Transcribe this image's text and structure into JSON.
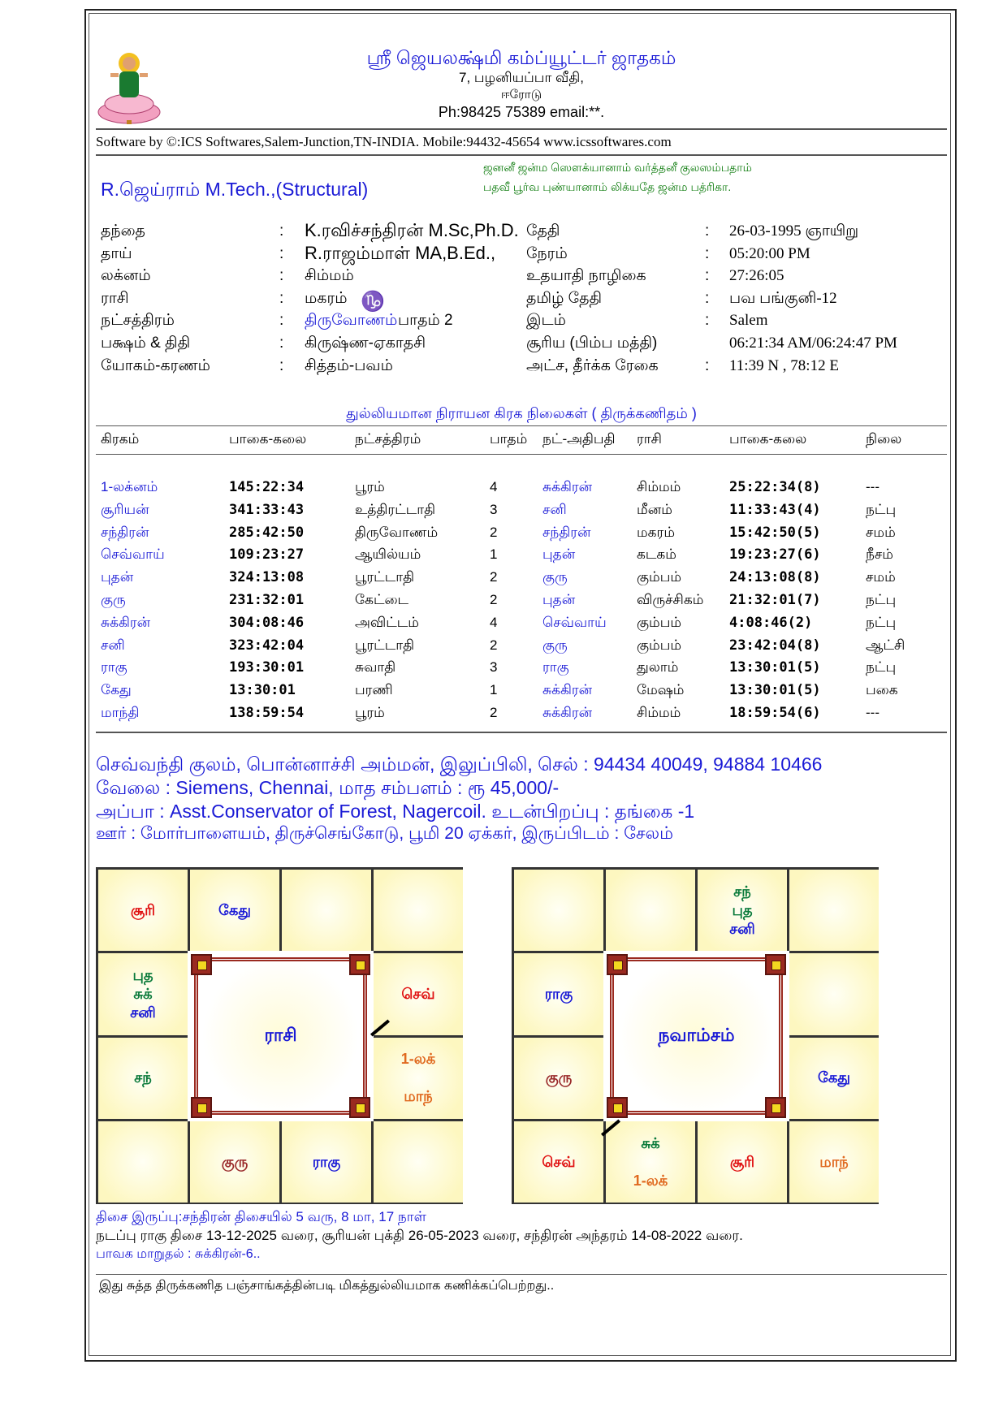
{
  "header": {
    "title": "ஸ்ரீ ஜெயலக்ஷ்மி கம்ப்யூட்டர் ஜாதகம்",
    "address1": "7, பழனியப்பா வீதி,",
    "address2": "ஈரோடு",
    "phone": "Ph:98425 75389 email:**.",
    "software": "Software by ©:ICS Softwares,Salem-Junction,TN-INDIA. Mobile:94432-45654 www.icssoftwares.com",
    "person_name": "R.ஜெய்ராம் M.Tech.,(Structural)",
    "sloka1": "ஜனனீ ஜன்ம  ஸௌக்யானாம் வர்த்தனீ குலஸம்பதாம்",
    "sloka2": "பதவீ பூர்வ புண்யானாம் லிக்யதே ஜன்ம பத்ரிகா."
  },
  "details_left": [
    {
      "label": "தந்தை",
      "value": "K.ரவிச்சந்திரன் M.Sc,Ph.D."
    },
    {
      "label": "தாய்",
      "value": "R.ராஜம்மாள் MA,B.Ed.,"
    },
    {
      "label": "லக்னம்",
      "value": "சிம்மம்"
    },
    {
      "label": "ராசி",
      "value": "மகரம்",
      "symbol": "♑"
    },
    {
      "label": "நட்சத்திரம்",
      "value": "திருவோணம்",
      "extra": "பாதம்  2"
    },
    {
      "label": "பக்ஷம் & திதி",
      "value": "கிருஷ்ண-ஏகாதசி"
    },
    {
      "label": "யோகம்-கரணம்",
      "value": "சித்தம்-பவம்"
    }
  ],
  "details_right": [
    {
      "label": "தேதி",
      "value": "26-03-1995 ஞாயிறு",
      "colon": ":"
    },
    {
      "label": "நேரம்",
      "value": "05:20:00 PM",
      "colon": ":"
    },
    {
      "label": "உதயாதி நாழிகை",
      "value": "27:26:05",
      "colon": ":"
    },
    {
      "label": "தமிழ் தேதி",
      "value": "பவ பங்குனி-12",
      "colon": ":"
    },
    {
      "label": "இடம்",
      "value": "Salem",
      "colon": ":"
    },
    {
      "label": "சூரிய (பிம்ப மத்தி)",
      "value": "06:21:34 AM/06:24:47 PM",
      "colon": ""
    },
    {
      "label": "அட்ச, தீர்க்க ரேகை",
      "value": "11:39 N , 78:12 E",
      "colon": ":"
    }
  ],
  "colon": ":",
  "planet_table": {
    "title": "துல்லியமான நிராயன கிரக நிலைகள் ( திருக்கணிதம் )",
    "headers": [
      "கிரகம்",
      "பாகை-கலை",
      "நட்சத்திரம்",
      "பாதம்",
      "நட்-அதிபதி",
      "ராசி",
      "பாகை-கலை",
      "நிலை"
    ],
    "rows": [
      [
        "1-லக்னம்",
        "145:22:34",
        "பூரம்",
        "4",
        "சுக்கிரன்",
        "சிம்மம்",
        "25:22:34(8)",
        "---"
      ],
      [
        "சூரியன்",
        "341:33:43",
        "உத்திரட்டாதி",
        "3",
        "சனி",
        "மீனம்",
        "11:33:43(4)",
        "நட்பு"
      ],
      [
        "சந்திரன்",
        "285:42:50",
        "திருவோணம்",
        "2",
        "சந்திரன்",
        "மகரம்",
        "15:42:50(5)",
        "சமம்"
      ],
      [
        "செவ்வாய்",
        "109:23:27",
        "ஆயில்யம்",
        "1",
        "புதன்",
        "கடகம்",
        "19:23:27(6)",
        "நீசம்"
      ],
      [
        "புதன்",
        "324:13:08",
        "பூரட்டாதி",
        "2",
        "குரு",
        "கும்பம்",
        "24:13:08(8)",
        "சமம்"
      ],
      [
        "குரு",
        "231:32:01",
        "கேட்டை",
        "2",
        "புதன்",
        "விருச்சிகம்",
        "21:32:01(7)",
        "நட்பு"
      ],
      [
        "சுக்கிரன்",
        "304:08:46",
        "அவிட்டம்",
        "4",
        "செவ்வாய்",
        "கும்பம்",
        "4:08:46(2)",
        "நட்பு"
      ],
      [
        "சனி",
        "323:42:04",
        "பூரட்டாதி",
        "2",
        "குரு",
        "கும்பம்",
        "23:42:04(8)",
        "ஆட்சி"
      ],
      [
        "ராகு",
        "193:30:01",
        "சுவாதி",
        "3",
        "ராகு",
        "துலாம்",
        "13:30:01(5)",
        "நட்பு"
      ],
      [
        "கேது",
        "13:30:01",
        "பரணி",
        "1",
        "சுக்கிரன்",
        "மேஷம்",
        "13:30:01(5)",
        "பகை"
      ],
      [
        "மாந்தி",
        "138:59:54",
        "பூரம்",
        "2",
        "சுக்கிரன்",
        "சிம்மம்",
        "18:59:54(6)",
        "---"
      ]
    ]
  },
  "info_lines": [
    "செவ்வந்தி குலம், பொன்னாச்சி அம்மன், இலுப்பிலி, செல் : 94434 40049, 94884 10466",
    "வேலை : Siemens, Chennai, மாத சம்பளம் : ரூ 45,000/-",
    "அப்பா : Asst.Conservator of Forest, Nagercoil. உடன்பிறப்பு : தங்கை -1",
    "ஊர் : மோர்பாளையம், திருச்செங்கோடு, பூமி 20 ஏக்கர், இருப்பிடம் : சேலம்"
  ],
  "colors": {
    "red": "#e01010",
    "blue": "#1a1ad6",
    "green": "#0a7a3a",
    "orange": "#e06a20",
    "maroon": "#9a2a2a"
  },
  "charts": [
    {
      "title": "ராசி",
      "cells": {
        "0-0": [
          {
            "t": "சூரி",
            "c": "red"
          }
        ],
        "0-1": [
          {
            "t": "கேது",
            "c": "blue"
          }
        ],
        "1-0": [
          {
            "t": "புத",
            "c": "green"
          },
          {
            "t": "சுக்",
            "c": "green"
          },
          {
            "t": "சனி",
            "c": "blue"
          }
        ],
        "1-3": [
          {
            "t": "செவ்",
            "c": "red"
          }
        ],
        "2-0": [
          {
            "t": "சந்",
            "c": "green"
          }
        ],
        "2-3": [
          {
            "t": "1-லக்",
            "c": "orange"
          },
          {
            "t": "",
            "c": "orange"
          },
          {
            "t": "மாந்",
            "c": "orange"
          }
        ],
        "3-1": [
          {
            "t": "குரு",
            "c": "maroon"
          }
        ],
        "3-2": [
          {
            "t": "ராகு",
            "c": "blue"
          }
        ]
      }
    },
    {
      "title": "நவாம்சம்",
      "cells": {
        "0-2": [
          {
            "t": "சந்",
            "c": "green"
          },
          {
            "t": "புத",
            "c": "green"
          },
          {
            "t": "சனி",
            "c": "blue"
          }
        ],
        "1-0": [
          {
            "t": "ராகு",
            "c": "blue"
          }
        ],
        "2-0": [
          {
            "t": "குரு",
            "c": "maroon"
          }
        ],
        "2-3": [
          {
            "t": "கேது",
            "c": "blue"
          }
        ],
        "3-0": [
          {
            "t": "செவ்",
            "c": "red"
          }
        ],
        "3-1": [
          {
            "t": "சுக்",
            "c": "green"
          },
          {
            "t": "",
            "c": "green"
          },
          {
            "t": "1-லக்",
            "c": "orange"
          }
        ],
        "3-2": [
          {
            "t": "சூரி",
            "c": "red"
          }
        ],
        "3-3": [
          {
            "t": "மாந்",
            "c": "orange"
          }
        ]
      }
    }
  ],
  "dasha": {
    "line1": "திசை இருப்பு:சந்திரன் திசையில் 5 வரு, 8 மா, 17 நாள்",
    "line2": "நடப்பு ராகு திசை 13-12-2025 வரை, சூரியன் புக்தி 26-05-2023 வரை, சந்திரன் அந்தரம் 14-08-2022 வரை.",
    "line3": "பாவக மாறுதல் : சுக்கிரன்-6.."
  },
  "footer_note": "இது சுத்த திருக்கணித பஞ்சாங்கத்தின்படி மிகத்துல்லியமாக கணிக்கப்பெற்றது.."
}
